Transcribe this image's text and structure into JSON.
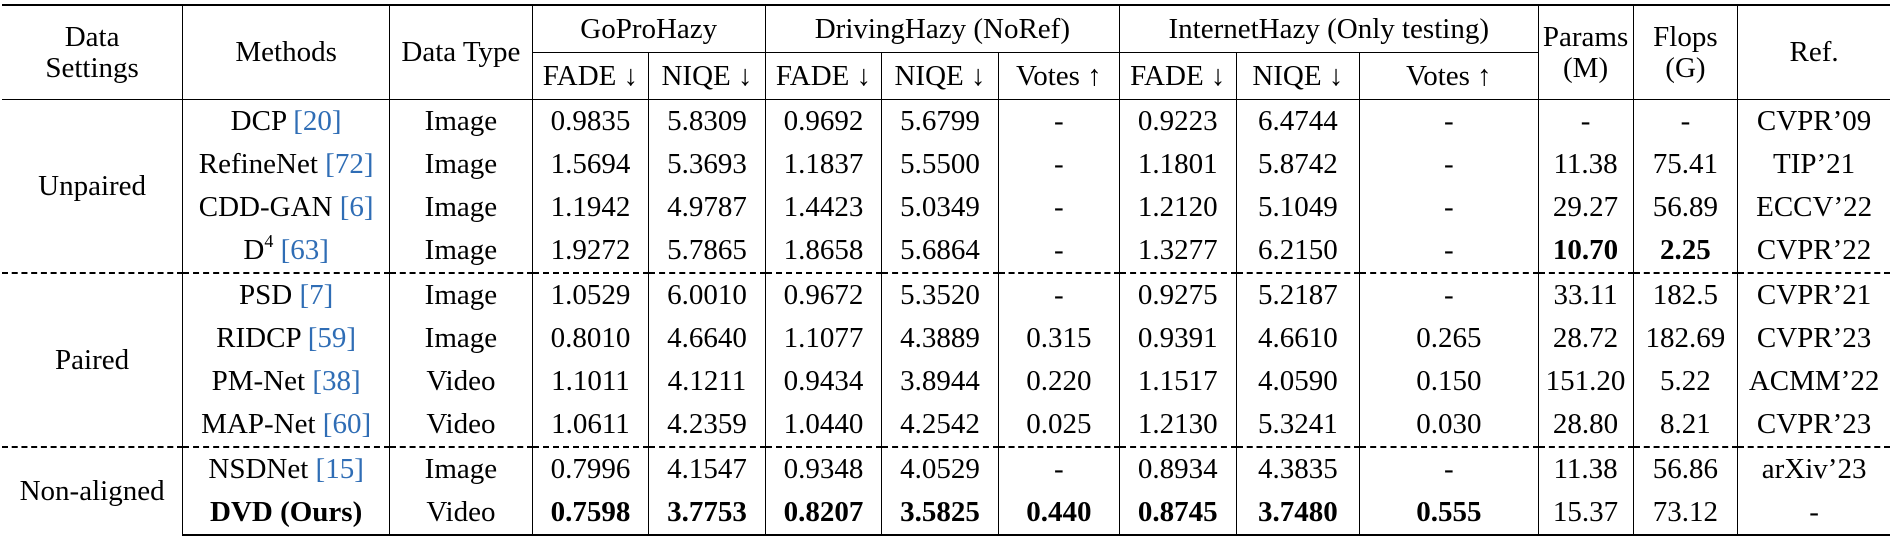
{
  "header": {
    "data_settings": [
      "Data",
      "Settings"
    ],
    "methods": "Methods",
    "data_type": "Data Type",
    "gopro": "GoProHazy",
    "driving": "DrivingHazy (NoRef)",
    "internet": "InternetHazy (Only testing)",
    "params": [
      "Params",
      "(M)"
    ],
    "flops": [
      "Flops",
      "(G)"
    ],
    "ref": "Ref.",
    "fade": "FADE ↓",
    "niqe": "NIQE ↓",
    "votes": "Votes ↑"
  },
  "groups": [
    "Unpaired",
    "Paired",
    "Non-aligned"
  ],
  "rows": [
    {
      "name": "DCP ",
      "cite": "[20]",
      "sup": "",
      "type": "Image",
      "g_fade": "0.9835",
      "g_niqe": "5.8309",
      "d_fade": "0.9692",
      "d_niqe": "5.6799",
      "d_votes": "-",
      "i_fade": "0.9223",
      "i_niqe": "6.4744",
      "i_votes": "-",
      "params": "-",
      "flops": "-",
      "ref": "CVPR’09"
    },
    {
      "name": "RefineNet ",
      "cite": "[72]",
      "sup": "",
      "type": "Image",
      "g_fade": "1.5694",
      "g_niqe": "5.3693",
      "d_fade": "1.1837",
      "d_niqe": "5.5500",
      "d_votes": "-",
      "i_fade": "1.1801",
      "i_niqe": "5.8742",
      "i_votes": "-",
      "params": "11.38",
      "flops": "75.41",
      "ref": "TIP’21"
    },
    {
      "name": "CDD-GAN ",
      "cite": "[6]",
      "sup": "",
      "type": "Image",
      "g_fade": "1.1942",
      "g_niqe": "4.9787",
      "d_fade": "1.4423",
      "d_niqe": "5.0349",
      "d_votes": "-",
      "i_fade": "1.2120",
      "i_niqe": "5.1049",
      "i_votes": "-",
      "params": "29.27",
      "flops": "56.89",
      "ref": "ECCV’22"
    },
    {
      "name": "D",
      "cite": "[63]",
      "sup": "4",
      "type": "Image",
      "g_fade": "1.9272",
      "g_niqe": "5.7865",
      "d_fade": "1.8658",
      "d_niqe": "5.6864",
      "d_votes": "-",
      "i_fade": "1.3277",
      "i_niqe": "6.2150",
      "i_votes": "-",
      "params": "10.70",
      "flops": "2.25",
      "ref": "CVPR’22"
    },
    {
      "name": "PSD ",
      "cite": "[7]",
      "sup": "",
      "type": "Image",
      "g_fade": "1.0529",
      "g_niqe": "6.0010",
      "d_fade": "0.9672",
      "d_niqe": "5.3520",
      "d_votes": "-",
      "i_fade": "0.9275",
      "i_niqe": "5.2187",
      "i_votes": "-",
      "params": "33.11",
      "flops": "182.5",
      "ref": "CVPR’21"
    },
    {
      "name": "RIDCP ",
      "cite": "[59]",
      "sup": "",
      "type": "Image",
      "g_fade": "0.8010",
      "g_niqe": "4.6640",
      "d_fade": "1.1077",
      "d_niqe": "4.3889",
      "d_votes": "0.315",
      "i_fade": "0.9391",
      "i_niqe": "4.6610",
      "i_votes": "0.265",
      "params": "28.72",
      "flops": "182.69",
      "ref": "CVPR’23"
    },
    {
      "name": "PM-Net ",
      "cite": "[38]",
      "sup": "",
      "type": "Video",
      "g_fade": "1.1011",
      "g_niqe": "4.1211",
      "d_fade": "0.9434",
      "d_niqe": "3.8944",
      "d_votes": "0.220",
      "i_fade": "1.1517",
      "i_niqe": "4.0590",
      "i_votes": "0.150",
      "params": "151.20",
      "flops": "5.22",
      "ref": "ACMM’22"
    },
    {
      "name": "MAP-Net ",
      "cite": "[60]",
      "sup": "",
      "type": "Video",
      "g_fade": "1.0611",
      "g_niqe": "4.2359",
      "d_fade": "1.0440",
      "d_niqe": "4.2542",
      "d_votes": "0.025",
      "i_fade": "1.2130",
      "i_niqe": "5.3241",
      "i_votes": "0.030",
      "params": "28.80",
      "flops": "8.21",
      "ref": "CVPR’23"
    },
    {
      "name": "NSDNet ",
      "cite": "[15]",
      "sup": "",
      "type": "Image",
      "g_fade": "0.7996",
      "g_niqe": "4.1547",
      "d_fade": "0.9348",
      "d_niqe": "4.0529",
      "d_votes": "-",
      "i_fade": "0.8934",
      "i_niqe": "4.3835",
      "i_votes": "-",
      "params": "11.38",
      "flops": "56.86",
      "ref": "arXiv’23"
    },
    {
      "name": "DVD (Ours)",
      "cite": "",
      "sup": "",
      "type": "Video",
      "g_fade": "0.7598",
      "g_niqe": "3.7753",
      "d_fade": "0.8207",
      "d_niqe": "3.5825",
      "d_votes": "0.440",
      "i_fade": "0.8745",
      "i_niqe": "3.7480",
      "i_votes": "0.555",
      "params": "15.37",
      "flops": "73.12",
      "ref": "-"
    }
  ]
}
